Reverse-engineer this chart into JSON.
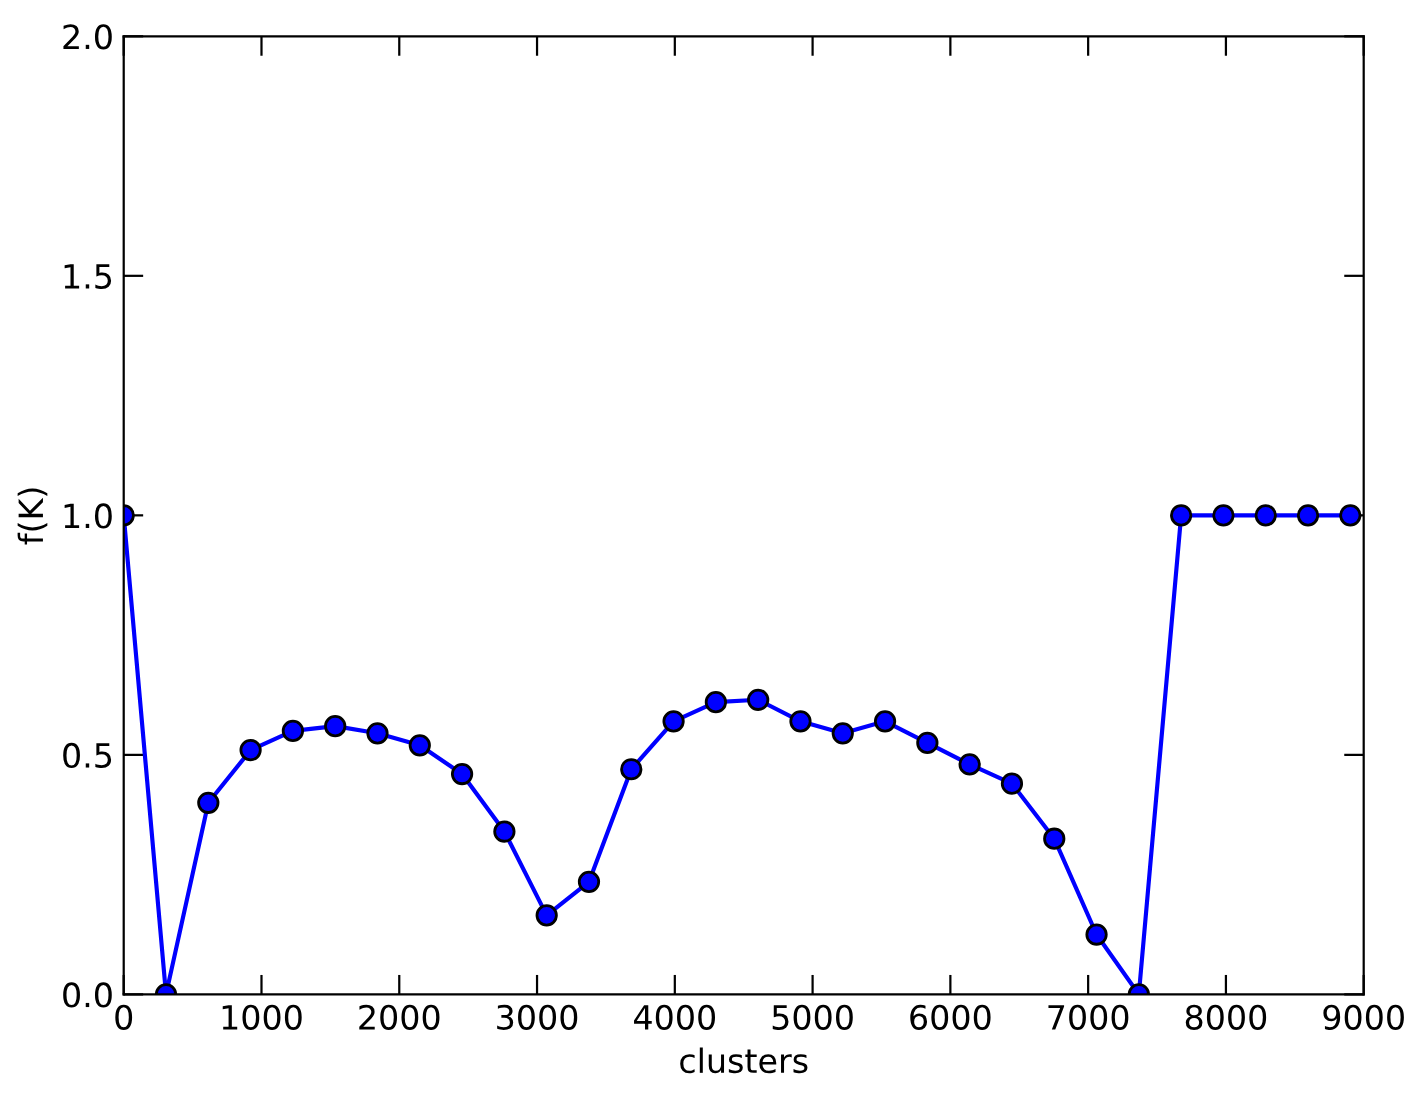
{
  "chart_data": {
    "type": "line",
    "xlabel": "clusters",
    "ylabel": "f(K)",
    "x": [
      0,
      307,
      614,
      921,
      1228,
      1535,
      1842,
      2149,
      2456,
      2763,
      3070,
      3377,
      3684,
      3991,
      4298,
      4605,
      4912,
      5219,
      5526,
      5833,
      6140,
      6447,
      6754,
      7061,
      7368,
      7675,
      7982,
      8289,
      8596,
      8903
    ],
    "series": [
      {
        "color": "#0000ff",
        "values": [
          1.0,
          0.0,
          0.4,
          0.51,
          0.55,
          0.56,
          0.545,
          0.52,
          0.46,
          0.34,
          0.165,
          0.235,
          0.47,
          0.57,
          0.61,
          0.615,
          0.57,
          0.545,
          0.57,
          0.525,
          0.48,
          0.44,
          0.325,
          0.125,
          0.0,
          1.0,
          1.0,
          1.0,
          1.0,
          1.0
        ]
      }
    ],
    "xlim": [
      0,
      9000
    ],
    "xticks": [
      0,
      1000,
      2000,
      3000,
      4000,
      5000,
      6000,
      7000,
      8000,
      9000
    ],
    "ylim": [
      0.0,
      2.0
    ],
    "yticks": [
      {
        "value": 0,
        "label": "0.0"
      },
      {
        "value": 0.5,
        "label": "0.5"
      },
      {
        "value": 1.0,
        "label": "1.0"
      },
      {
        "value": 1.5,
        "label": "1.5"
      },
      {
        "value": 2.0,
        "label": "2.0"
      }
    ],
    "marker": "circle",
    "line_style": "solid",
    "grid": false,
    "legend": false
  }
}
